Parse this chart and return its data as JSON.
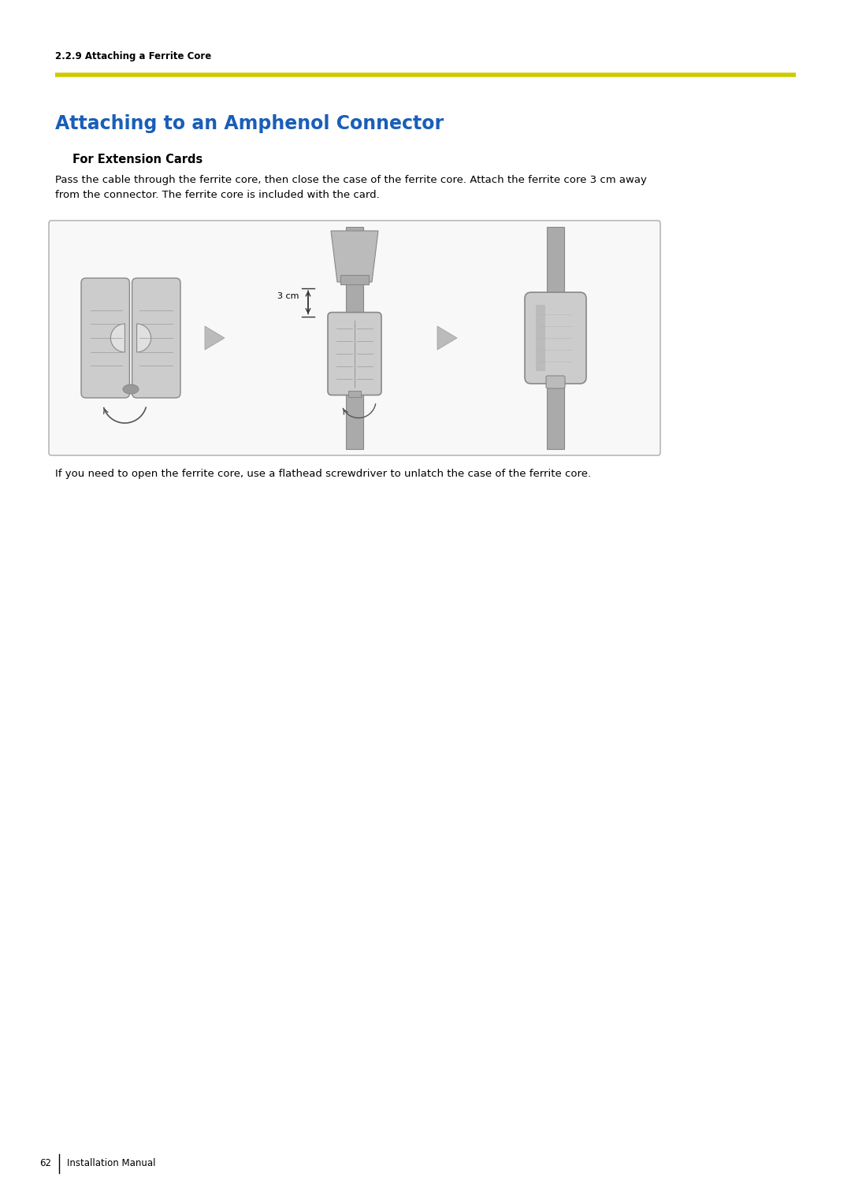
{
  "page_bg": "#ffffff",
  "section_label": "2.2.9 Attaching a Ferrite Core",
  "section_label_fontsize": 8.5,
  "section_label_color": "#000000",
  "rule_color": "#cccc00",
  "title": "Attaching to an Amphenol Connector",
  "title_color": "#1a5eb8",
  "title_fontsize": 17,
  "subtitle": "For Extension Cards",
  "subtitle_fontsize": 10.5,
  "body_text1": "Pass the cable through the ferrite core, then close the case of the ferrite core. Attach the ferrite core 3 cm away\nfrom the connector. The ferrite core is included with the card.",
  "body_text1_fontsize": 9.5,
  "body_text2": "If you need to open the ferrite core, use a flathead screwdriver to unlatch the case of the ferrite core.",
  "body_text2_fontsize": 9.5,
  "footer_text": "62",
  "footer_text2": "Installation Manual",
  "footer_fontsize": 8.5,
  "fig_w": 10.8,
  "fig_h": 15.27,
  "dpi": 100
}
